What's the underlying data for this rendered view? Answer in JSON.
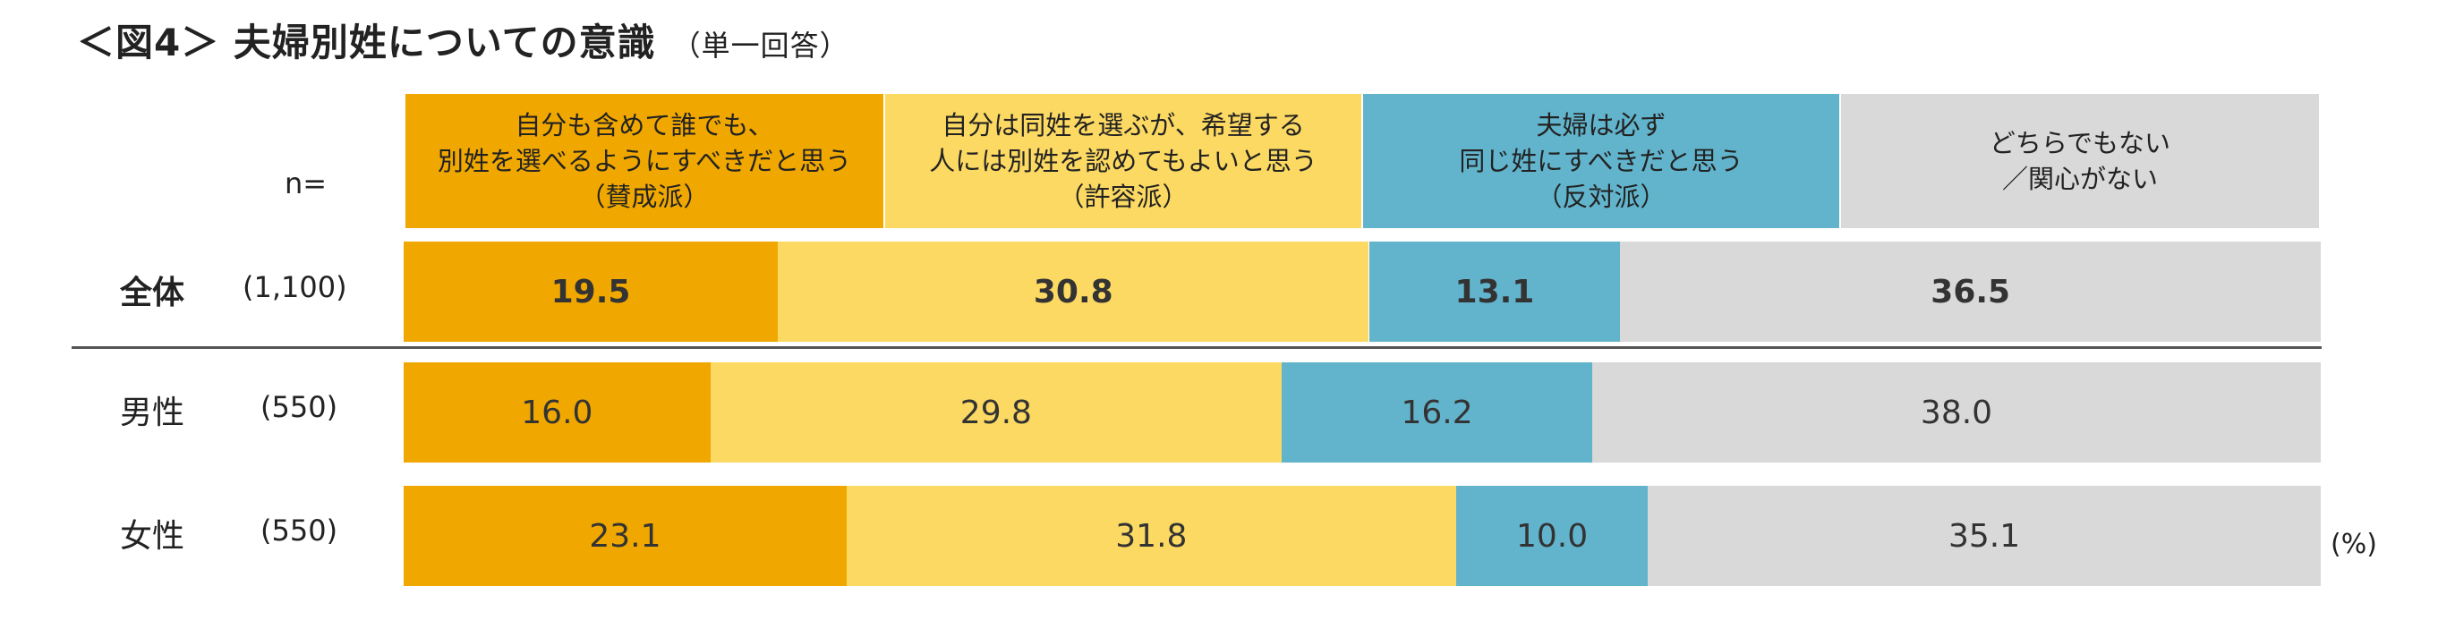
{
  "title": {
    "main": "＜図4＞ 夫婦別姓についての意識",
    "sub": "（単一回答）"
  },
  "n_label": "n=",
  "unit": "(%)",
  "colors": {
    "agree": "#f0a800",
    "tolerate": "#fcd962",
    "oppose": "#62b4cc",
    "neither": "#d9d9d9"
  },
  "headers": [
    {
      "lines": [
        "自分も含めて誰でも、",
        "別姓を選べるようにすべきだと思う",
        "（賛成派）"
      ]
    },
    {
      "lines": [
        "自分は同姓を選ぶが、希望する",
        "人には別姓を認めてもよいと思う",
        "（許容派）"
      ]
    },
    {
      "lines": [
        "夫婦は必ず",
        "同じ姓にすべきだと思う",
        "（反対派）"
      ]
    },
    {
      "lines": [
        "どちらでもない",
        "／関心がない"
      ]
    }
  ],
  "chart_data": {
    "type": "bar",
    "orientation": "horizontal-stacked-100",
    "categories": [
      "全体",
      "男性",
      "女性"
    ],
    "n": [
      "(1,100)",
      "(550)",
      "(550)"
    ],
    "series": [
      {
        "name": "自分も含めて誰でも、別姓を選べるようにすべきだと思う（賛成派）",
        "values": [
          19.5,
          16.0,
          23.1
        ]
      },
      {
        "name": "自分は同姓を選ぶが、希望する人には別姓を認めてもよいと思う（許容派）",
        "values": [
          30.8,
          29.8,
          31.8
        ]
      },
      {
        "name": "夫婦は必ず同じ姓にすべきだと思う（反対派）",
        "values": [
          13.1,
          16.2,
          10.0
        ]
      },
      {
        "name": "どちらでもない／関心がない",
        "values": [
          36.5,
          38.0,
          35.1
        ]
      }
    ],
    "labels": [
      [
        "19.5",
        "30.8",
        "13.1",
        "36.5"
      ],
      [
        "16.0",
        "29.8",
        "16.2",
        "38.0"
      ],
      [
        "23.1",
        "31.8",
        "10.0",
        "35.1"
      ]
    ],
    "xlim": [
      0,
      100
    ]
  }
}
